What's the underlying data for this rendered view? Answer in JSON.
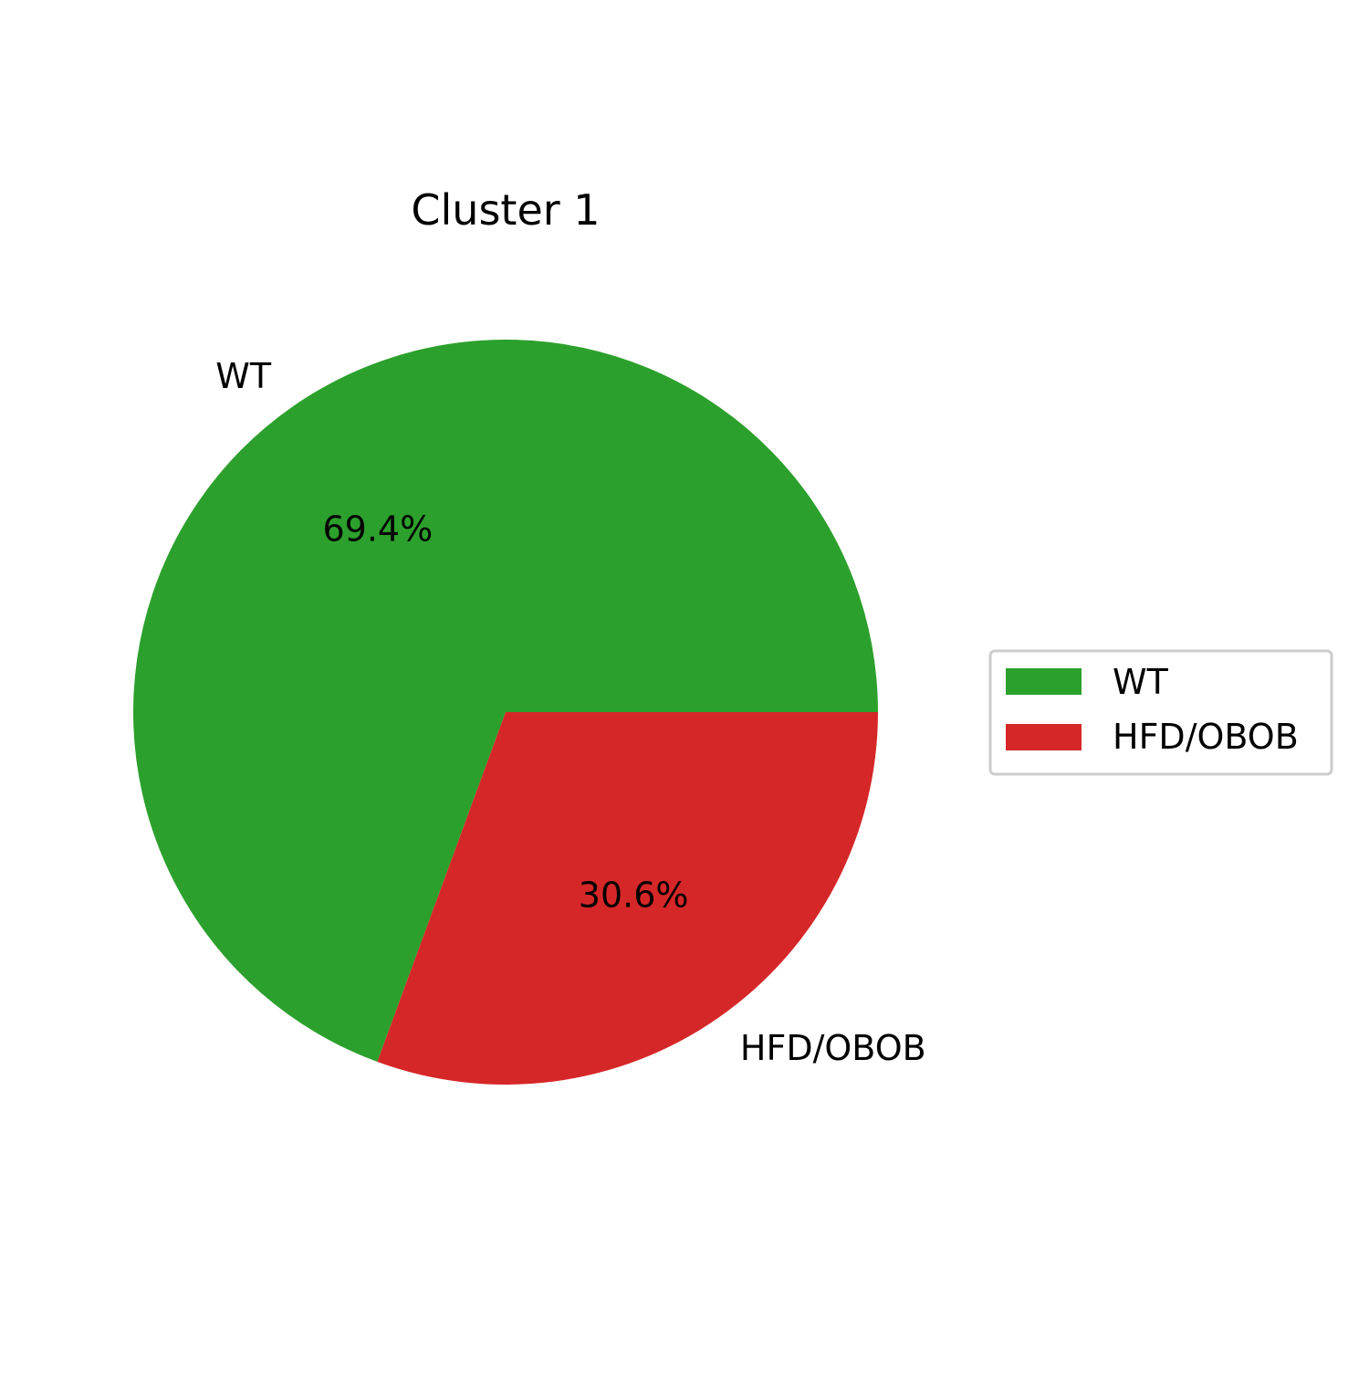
{
  "chart_data": {
    "type": "pie",
    "title": "Cluster 1",
    "slices": [
      {
        "label": "WT",
        "value": 69.4,
        "pct_label": "69.4%",
        "color": "#2ca02c"
      },
      {
        "label": "HFD/OBOB",
        "value": 30.6,
        "pct_label": "30.6%",
        "color": "#d62728"
      }
    ],
    "start_angle_deg": 0,
    "direction": "counterclockwise",
    "legend": {
      "placement": "center-right",
      "entries": [
        "WT",
        "HFD/OBOB"
      ]
    }
  }
}
